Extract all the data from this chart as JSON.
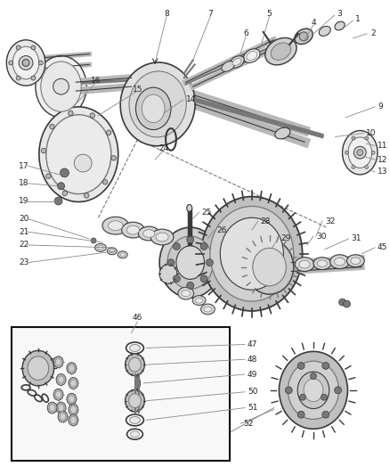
{
  "bg_color": "#ffffff",
  "fig_width": 4.38,
  "fig_height": 5.33,
  "dpi": 100,
  "gray_dark": "#3a3a3a",
  "gray_mid": "#787878",
  "gray_light": "#b8b8b8",
  "gray_fill": "#d4d4d4",
  "gray_light_fill": "#e8e8e8",
  "callout_color": "#888888",
  "text_color": "#222222",
  "label_fontsize": 6.5
}
